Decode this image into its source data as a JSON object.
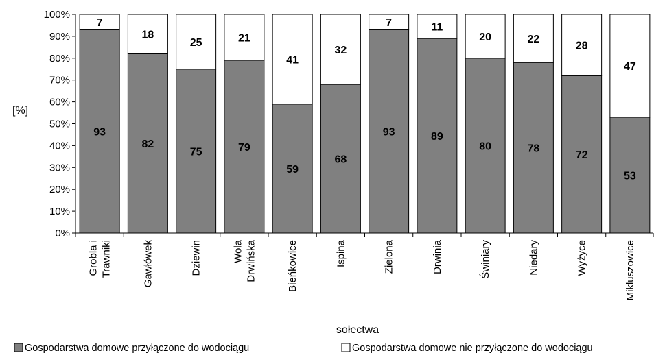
{
  "chart_data": {
    "type": "bar",
    "stacked": "percent",
    "categories": [
      "Grobla i Trawniki",
      "Gawłówek",
      "Dziewin",
      "Wola Drwińska",
      "Bieńkowice",
      "Ispina",
      "Zielona",
      "Drwinia",
      "Świniary",
      "Niedary",
      "Wyżyce",
      "Mikluszowice"
    ],
    "category_lines": [
      [
        "Grobla i",
        "Trawniki"
      ],
      [
        "Gawłówek"
      ],
      [
        "Dziewin"
      ],
      [
        "Wola",
        "Drwińska"
      ],
      [
        "Bieńkowice"
      ],
      [
        "Ispina"
      ],
      [
        "Zielona"
      ],
      [
        "Drwinia"
      ],
      [
        "Świniary"
      ],
      [
        "Niedary"
      ],
      [
        "Wyżyce"
      ],
      [
        "Mikluszowice"
      ]
    ],
    "series": [
      {
        "name": "Gospodarstwa domowe przyłączone do wodociągu",
        "color": "#808080",
        "values": [
          93,
          82,
          75,
          79,
          59,
          68,
          93,
          89,
          80,
          78,
          72,
          53
        ]
      },
      {
        "name": "Gospodarstwa domowe nie przyłączone do wodociągu",
        "color": "#ffffff",
        "values": [
          7,
          18,
          25,
          21,
          41,
          32,
          7,
          11,
          20,
          22,
          28,
          47
        ]
      }
    ],
    "ylabel": "[%]",
    "xlabel": "sołectwa",
    "ylim": [
      0,
      100
    ],
    "yticks": [
      "0%",
      "10%",
      "20%",
      "30%",
      "40%",
      "50%",
      "60%",
      "70%",
      "80%",
      "90%",
      "100%"
    ],
    "grid": false,
    "legend_position": "bottom",
    "data_labels": true
  }
}
